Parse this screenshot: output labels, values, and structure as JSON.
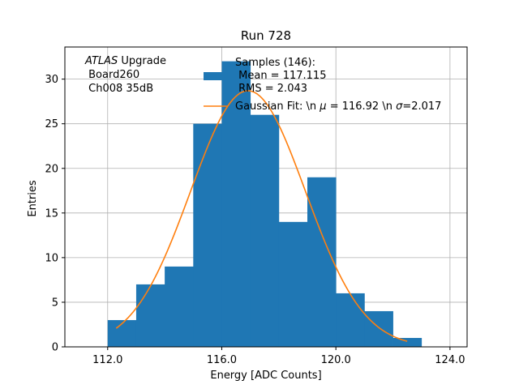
{
  "chart_data": {
    "type": "bar",
    "title": "Run 728",
    "xlabel": "Energy [ADC Counts]",
    "ylabel": "Entries",
    "xlim": [
      110.5,
      124.6
    ],
    "ylim": [
      0,
      33.6
    ],
    "xticks": [
      112,
      116,
      120,
      124
    ],
    "xtick_labels": [
      "112.0",
      "116.0",
      "120.0",
      "124.0"
    ],
    "yticks": [
      0,
      5,
      10,
      15,
      20,
      25,
      30
    ],
    "yticks_labels": [
      "0",
      "5",
      "10",
      "15",
      "20",
      "25",
      "30"
    ],
    "grid": true,
    "bins": [
      {
        "start": 112,
        "end": 113,
        "count": 3
      },
      {
        "start": 113,
        "end": 114,
        "count": 7
      },
      {
        "start": 114,
        "end": 115,
        "count": 9
      },
      {
        "start": 115,
        "end": 116,
        "count": 25
      },
      {
        "start": 116,
        "end": 117,
        "count": 32
      },
      {
        "start": 117,
        "end": 118,
        "count": 26
      },
      {
        "start": 118,
        "end": 119,
        "count": 14
      },
      {
        "start": 119,
        "end": 120,
        "count": 19
      },
      {
        "start": 120,
        "end": 121,
        "count": 6
      },
      {
        "start": 121,
        "end": 122,
        "count": 4
      },
      {
        "start": 122,
        "end": 123,
        "count": 1
      }
    ],
    "fit": {
      "mu": 116.92,
      "sigma": 2.017,
      "amplitude": 28.7,
      "x_range": [
        112.3,
        122.5
      ]
    },
    "annotation": {
      "italic": "ATLAS",
      "rest": " Upgrade",
      "line2": " Board260",
      "line3": " Ch008 35dB"
    },
    "legend": {
      "position": "top-right",
      "hist_label_lines": [
        "Samples (146):",
        " Mean = 117.115",
        " RMS = 2.043"
      ],
      "fit_label_prefix": "Gaussian Fit: \\n ",
      "fit_label_mu": "μ",
      "fit_label_mid": " = 116.92 \\n ",
      "fit_label_sigma": "σ",
      "fit_label_end": "=2.017"
    },
    "colors": {
      "bars": "#1f77b4",
      "fit": "#ff7f0e",
      "grid": "#b0b0b0"
    }
  }
}
